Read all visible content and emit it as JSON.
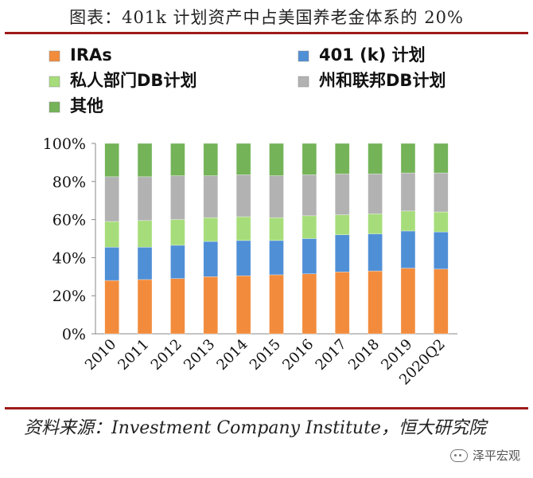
{
  "title": "图表：401k 计划资产中占美国养老金体系的 20%",
  "source": "资料来源：Investment Company Institute，恒大研究院",
  "watermark": "泽平宏观",
  "chart_data": {
    "type": "bar",
    "stacked": true,
    "categories": [
      "2010",
      "2011",
      "2012",
      "2013",
      "2014",
      "2015",
      "2016",
      "2017",
      "2018",
      "2019",
      "2020Q2"
    ],
    "series": [
      {
        "name": "IRAs",
        "color": "#f28c3c",
        "values": [
          28,
          28.5,
          29,
          30,
          30.5,
          31,
          31.5,
          32.5,
          33,
          34.5,
          34
        ]
      },
      {
        "name": "401 (k) 计划",
        "color": "#4f8fd6",
        "values": [
          17.5,
          17,
          17.5,
          18.5,
          18.5,
          18,
          18.5,
          19.5,
          19.5,
          19.5,
          19.5
        ]
      },
      {
        "name": "私人部门DB计划",
        "color": "#a6dd7a",
        "values": [
          13.5,
          14,
          13.5,
          12.5,
          12.5,
          12,
          12,
          10.5,
          10.5,
          10.5,
          10.5
        ]
      },
      {
        "name": "州和联邦DB计划",
        "color": "#b2b2b2",
        "values": [
          23.5,
          23,
          23,
          22,
          22,
          22,
          21.5,
          21.5,
          21,
          20,
          20.5
        ]
      },
      {
        "name": "其他",
        "color": "#74b358",
        "values": [
          17.5,
          17.5,
          17,
          17,
          16.5,
          17,
          16.5,
          16,
          16,
          15.5,
          15.5
        ]
      }
    ],
    "yticks": [
      "0%",
      "20%",
      "40%",
      "60%",
      "80%",
      "100%"
    ],
    "ylim": [
      0,
      100
    ],
    "xlabel": "",
    "ylabel": "",
    "legend_position": "top",
    "grid": false
  }
}
